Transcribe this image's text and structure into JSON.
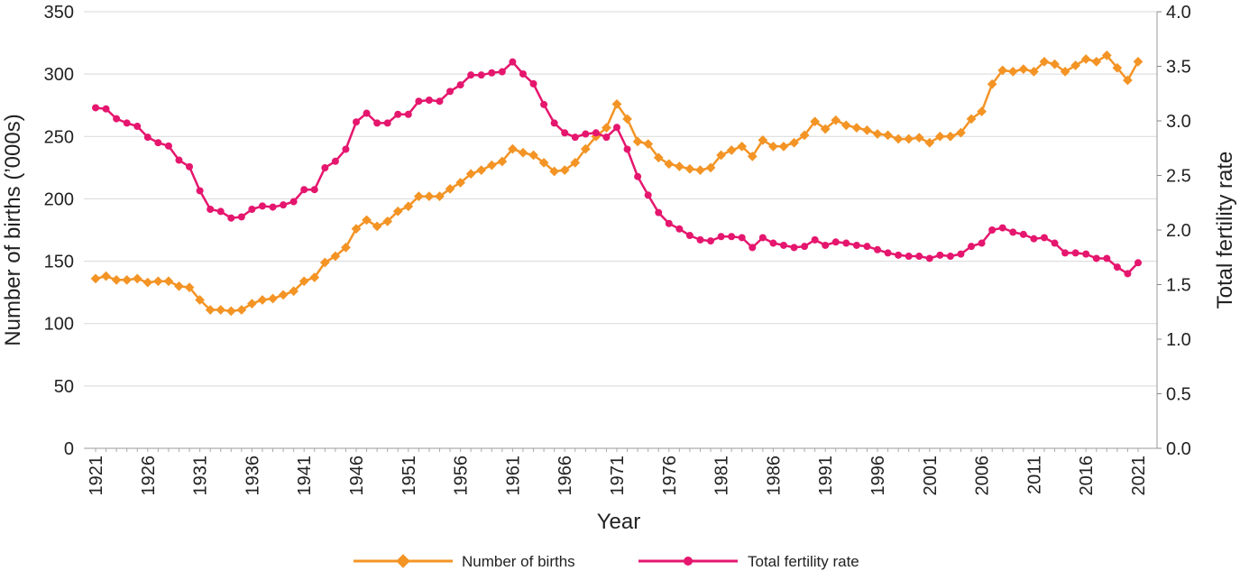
{
  "chart_data": {
    "type": "line",
    "xlabel": "Year",
    "ylabel_left": "Number of births (’000s)",
    "ylabel_right": "Total fertility rate",
    "ylim_left": [
      0,
      350
    ],
    "ylim_right": [
      0,
      4.0
    ],
    "yticks_left": [
      "0",
      "50",
      "100",
      "150",
      "200",
      "250",
      "300",
      "350"
    ],
    "yticks_right": [
      "0.0",
      "0.5",
      "1.0",
      "1.5",
      "2.0",
      "2.5",
      "3.0",
      "3.5",
      "4.0"
    ],
    "xticks": [
      "1921",
      "1926",
      "1931",
      "1936",
      "1941",
      "1946",
      "1951",
      "1956",
      "1961",
      "1966",
      "1971",
      "1976",
      "1981",
      "1986",
      "1991",
      "1996",
      "2001",
      "2006",
      "2011",
      "2016",
      "2021"
    ],
    "grid": true,
    "legend_position": "bottom",
    "x": [
      1921,
      1922,
      1923,
      1924,
      1925,
      1926,
      1927,
      1928,
      1929,
      1930,
      1931,
      1932,
      1933,
      1934,
      1935,
      1936,
      1937,
      1938,
      1939,
      1940,
      1941,
      1942,
      1943,
      1944,
      1945,
      1946,
      1947,
      1948,
      1949,
      1950,
      1951,
      1952,
      1953,
      1954,
      1955,
      1956,
      1957,
      1958,
      1959,
      1960,
      1961,
      1962,
      1963,
      1964,
      1965,
      1966,
      1967,
      1968,
      1969,
      1970,
      1971,
      1972,
      1973,
      1974,
      1975,
      1976,
      1977,
      1978,
      1979,
      1980,
      1981,
      1982,
      1983,
      1984,
      1985,
      1986,
      1987,
      1988,
      1989,
      1990,
      1991,
      1992,
      1993,
      1994,
      1995,
      1996,
      1997,
      1998,
      1999,
      2000,
      2001,
      2002,
      2003,
      2004,
      2005,
      2006,
      2007,
      2008,
      2009,
      2010,
      2011,
      2012,
      2013,
      2014,
      2015,
      2016,
      2017,
      2018,
      2019,
      2020,
      2021
    ],
    "series": [
      {
        "name": "Number of births",
        "axis": "left",
        "color": "#F39425",
        "marker": "diamond",
        "values": [
          136,
          138,
          135,
          135,
          136,
          133,
          134,
          134,
          130,
          129,
          119,
          111,
          111,
          110,
          111,
          116,
          119,
          120,
          123,
          126,
          134,
          137,
          149,
          154,
          161,
          176,
          183,
          178,
          182,
          190,
          194,
          202,
          202,
          202,
          208,
          213,
          220,
          223,
          227,
          230,
          240,
          237,
          235,
          229,
          222,
          223,
          229,
          240,
          250,
          257,
          276,
          264,
          246,
          244,
          233,
          228,
          226,
          224,
          223,
          225,
          235,
          239,
          242,
          234,
          247,
          242,
          242,
          245,
          251,
          262,
          256,
          263,
          259,
          257,
          255,
          252,
          251,
          248,
          248,
          249,
          245,
          250,
          250,
          253,
          264,
          270,
          292,
          303,
          302,
          304,
          302,
          310,
          308,
          302,
          307,
          312,
          310,
          315,
          305,
          295,
          310
        ]
      },
      {
        "name": "Total fertility rate",
        "axis": "right",
        "color": "#E5166E",
        "marker": "circle",
        "values": [
          3.12,
          3.11,
          3.02,
          2.98,
          2.95,
          2.85,
          2.8,
          2.77,
          2.64,
          2.58,
          2.36,
          2.19,
          2.17,
          2.11,
          2.12,
          2.19,
          2.22,
          2.21,
          2.23,
          2.26,
          2.37,
          2.37,
          2.57,
          2.63,
          2.74,
          2.99,
          3.07,
          2.98,
          2.98,
          3.06,
          3.06,
          3.18,
          3.19,
          3.18,
          3.27,
          3.33,
          3.42,
          3.42,
          3.44,
          3.45,
          3.54,
          3.43,
          3.34,
          3.15,
          2.98,
          2.89,
          2.85,
          2.88,
          2.89,
          2.85,
          2.94,
          2.74,
          2.49,
          2.32,
          2.16,
          2.06,
          2.01,
          1.95,
          1.91,
          1.9,
          1.94,
          1.94,
          1.93,
          1.84,
          1.93,
          1.88,
          1.86,
          1.84,
          1.85,
          1.91,
          1.86,
          1.89,
          1.88,
          1.86,
          1.85,
          1.82,
          1.79,
          1.77,
          1.76,
          1.76,
          1.74,
          1.77,
          1.76,
          1.78,
          1.85,
          1.88,
          2.0,
          2.02,
          1.98,
          1.96,
          1.92,
          1.93,
          1.88,
          1.79,
          1.79,
          1.78,
          1.74,
          1.74,
          1.66,
          1.6,
          1.7
        ]
      }
    ]
  }
}
